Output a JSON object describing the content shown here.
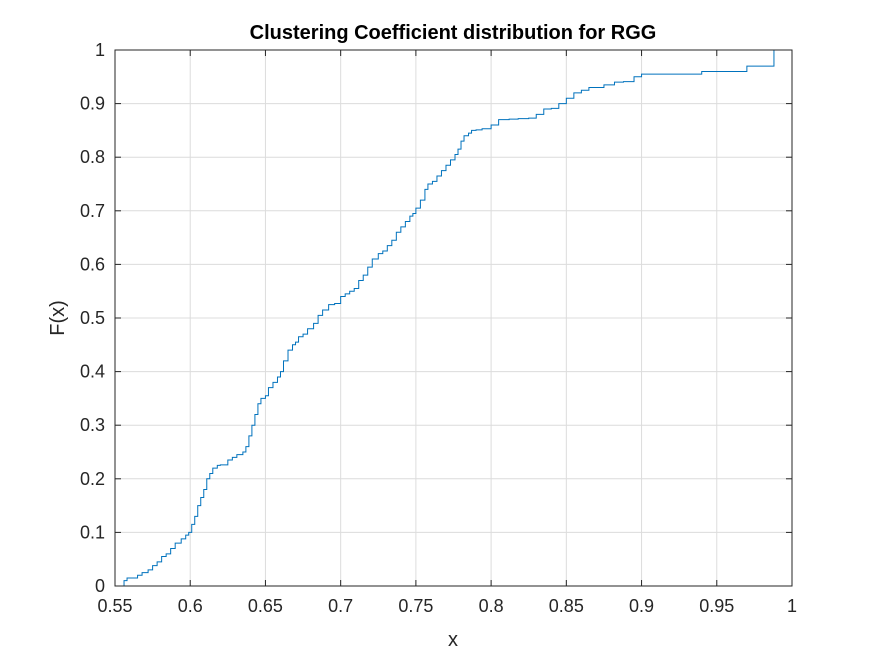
{
  "chart_data": {
    "type": "line",
    "title": "Clustering Coefficient distribution for RGG",
    "xlabel": "x",
    "ylabel": "F(x)",
    "xlim": [
      0.55,
      1
    ],
    "ylim": [
      0,
      1
    ],
    "grid": true,
    "xticks": [
      0.55,
      0.6,
      0.65,
      0.7,
      0.75,
      0.8,
      0.85,
      0.9,
      0.95,
      1
    ],
    "xtick_labels": [
      "0.55",
      "0.6",
      "0.65",
      "0.7",
      "0.75",
      "0.8",
      "0.85",
      "0.9",
      "0.95",
      "1"
    ],
    "yticks": [
      0,
      0.1,
      0.2,
      0.3,
      0.4,
      0.5,
      0.6,
      0.7,
      0.8,
      0.9,
      1
    ],
    "ytick_labels": [
      "0",
      "0.1",
      "0.2",
      "0.3",
      "0.4",
      "0.5",
      "0.6",
      "0.7",
      "0.8",
      "0.9",
      "1"
    ],
    "series": [
      {
        "color": "#0072BD",
        "x": [
          0.553,
          0.556,
          0.558,
          0.565,
          0.568,
          0.572,
          0.575,
          0.578,
          0.581,
          0.584,
          0.587,
          0.59,
          0.594,
          0.597,
          0.599,
          0.601,
          0.603,
          0.605,
          0.607,
          0.609,
          0.611,
          0.613,
          0.615,
          0.618,
          0.62,
          0.625,
          0.628,
          0.631,
          0.635,
          0.637,
          0.639,
          0.641,
          0.643,
          0.645,
          0.647,
          0.65,
          0.652,
          0.655,
          0.658,
          0.66,
          0.662,
          0.665,
          0.668,
          0.67,
          0.672,
          0.675,
          0.678,
          0.682,
          0.685,
          0.688,
          0.692,
          0.696,
          0.7,
          0.703,
          0.706,
          0.709,
          0.712,
          0.715,
          0.718,
          0.721,
          0.725,
          0.728,
          0.731,
          0.734,
          0.737,
          0.74,
          0.743,
          0.746,
          0.748,
          0.75,
          0.753,
          0.756,
          0.758,
          0.761,
          0.764,
          0.767,
          0.77,
          0.773,
          0.776,
          0.778,
          0.78,
          0.782,
          0.785,
          0.787,
          0.79,
          0.794,
          0.8,
          0.805,
          0.812,
          0.818,
          0.825,
          0.83,
          0.835,
          0.84,
          0.845,
          0.85,
          0.855,
          0.86,
          0.865,
          0.875,
          0.882,
          0.888,
          0.895,
          0.9,
          0.94,
          0.97,
          0.988
        ],
        "y": [
          0.0,
          0.01,
          0.015,
          0.02,
          0.025,
          0.03,
          0.038,
          0.045,
          0.055,
          0.06,
          0.07,
          0.08,
          0.088,
          0.095,
          0.1,
          0.115,
          0.13,
          0.15,
          0.165,
          0.18,
          0.2,
          0.21,
          0.22,
          0.225,
          0.226,
          0.235,
          0.24,
          0.245,
          0.25,
          0.26,
          0.28,
          0.3,
          0.32,
          0.34,
          0.35,
          0.355,
          0.37,
          0.38,
          0.39,
          0.4,
          0.42,
          0.44,
          0.45,
          0.455,
          0.465,
          0.47,
          0.48,
          0.49,
          0.505,
          0.515,
          0.525,
          0.527,
          0.54,
          0.545,
          0.55,
          0.555,
          0.57,
          0.58,
          0.595,
          0.61,
          0.62,
          0.625,
          0.635,
          0.645,
          0.66,
          0.67,
          0.68,
          0.69,
          0.695,
          0.705,
          0.72,
          0.74,
          0.75,
          0.755,
          0.765,
          0.775,
          0.785,
          0.795,
          0.805,
          0.815,
          0.83,
          0.84,
          0.845,
          0.85,
          0.851,
          0.853,
          0.86,
          0.87,
          0.871,
          0.872,
          0.873,
          0.88,
          0.89,
          0.891,
          0.9,
          0.91,
          0.92,
          0.925,
          0.93,
          0.935,
          0.94,
          0.941,
          0.95,
          0.955,
          0.96,
          0.97,
          1.0
        ]
      }
    ]
  }
}
